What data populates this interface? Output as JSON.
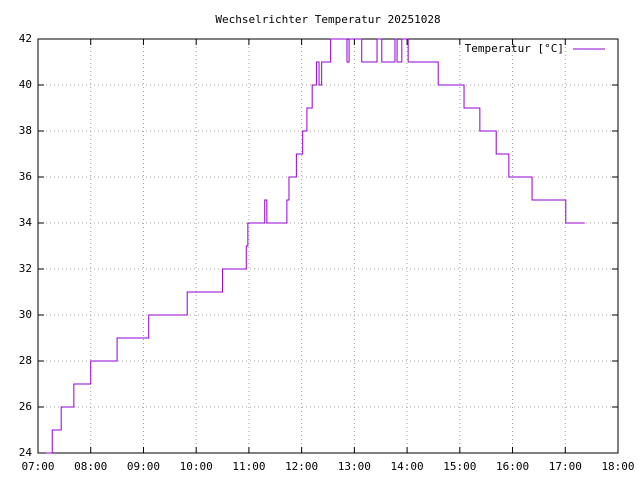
{
  "chart_data": {
    "type": "line",
    "title": "Wechselrichter Temperatur 20251028",
    "xlim": [
      7,
      18
    ],
    "xticks": [
      {
        "value": 7,
        "label": "07:00"
      },
      {
        "value": 8,
        "label": "08:00"
      },
      {
        "value": 9,
        "label": "09:00"
      },
      {
        "value": 10,
        "label": "10:00"
      },
      {
        "value": 11,
        "label": "11:00"
      },
      {
        "value": 12,
        "label": "12:00"
      },
      {
        "value": 13,
        "label": "13:00"
      },
      {
        "value": 14,
        "label": "14:00"
      },
      {
        "value": 15,
        "label": "15:00"
      },
      {
        "value": 16,
        "label": "16:00"
      },
      {
        "value": 17,
        "label": "17:00"
      },
      {
        "value": 18,
        "label": "18:00"
      }
    ],
    "ylim": [
      24,
      42
    ],
    "yticks": [
      24,
      26,
      28,
      30,
      32,
      34,
      36,
      38,
      40,
      42
    ],
    "grid": true,
    "legend": "upper right",
    "x": [
      7.15,
      7.27,
      7.27,
      7.44,
      7.44,
      7.68,
      7.68,
      8.0,
      8.0,
      8.5,
      8.5,
      9.1,
      9.1,
      9.83,
      9.83,
      10.5,
      10.5,
      10.95,
      10.95,
      10.98,
      10.98,
      11.3,
      11.3,
      11.34,
      11.34,
      11.72,
      11.72,
      11.76,
      11.76,
      11.9,
      11.9,
      12.02,
      12.02,
      12.1,
      12.1,
      12.2,
      12.2,
      12.28,
      12.28,
      12.33,
      12.33,
      12.38,
      12.38,
      12.55,
      12.55,
      12.86,
      12.86,
      12.9,
      12.9,
      13.14,
      13.14,
      13.43,
      13.43,
      13.52,
      13.52,
      13.77,
      13.77,
      13.81,
      13.81,
      13.9,
      13.9,
      14.02,
      14.02,
      14.59,
      14.59,
      15.08,
      15.08,
      15.38,
      15.38,
      15.69,
      15.69,
      15.93,
      15.93,
      16.37,
      16.37,
      17.01,
      17.01,
      17.37
    ],
    "series": [
      {
        "name": "Temperatur [°C]",
        "color": "#9400d3",
        "values": [
          24,
          24,
          25,
          25,
          26,
          26,
          27,
          27,
          28,
          28,
          29,
          29,
          30,
          30,
          31,
          31,
          32,
          32,
          33,
          33,
          34,
          34,
          35,
          35,
          34,
          34,
          35,
          35,
          36,
          36,
          37,
          37,
          38,
          38,
          39,
          39,
          40,
          40,
          41,
          41,
          40,
          40,
          41,
          41,
          42,
          42,
          41,
          41,
          42,
          42,
          41,
          41,
          42,
          42,
          41,
          41,
          42,
          42,
          41,
          41,
          42,
          42,
          41,
          41,
          40,
          40,
          39,
          39,
          38,
          38,
          37,
          37,
          36,
          36,
          35,
          35,
          34,
          34
        ]
      }
    ]
  }
}
